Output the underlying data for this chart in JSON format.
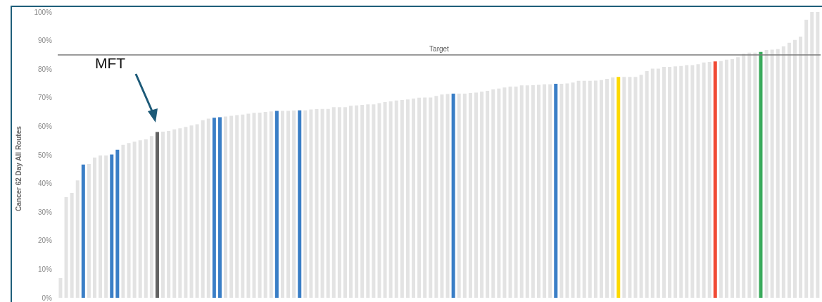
{
  "chart_data": {
    "type": "bar",
    "ylabel": "Cancer 62 Day All Routes",
    "categories": [
      null,
      null,
      null,
      null,
      null,
      null,
      null,
      null,
      null,
      null,
      null,
      null,
      null,
      null,
      null,
      null,
      null,
      null,
      null,
      null,
      null,
      null,
      null,
      null,
      null,
      null,
      null,
      null,
      null,
      null,
      null,
      null,
      null,
      null,
      null,
      null,
      null,
      null,
      null,
      null,
      null,
      null,
      null,
      null,
      null,
      null,
      null,
      null,
      null,
      null,
      null,
      null,
      null,
      null,
      null,
      null,
      null,
      null,
      null,
      null,
      null,
      null,
      null,
      null,
      null,
      null,
      null,
      null,
      null,
      null,
      null,
      null,
      null,
      null,
      null,
      null,
      null,
      null,
      null,
      null,
      null,
      null,
      null,
      null,
      null,
      null,
      null,
      null,
      null,
      null,
      null,
      null,
      null,
      null,
      null,
      null,
      null,
      null,
      null,
      null,
      null,
      null,
      null,
      null,
      null,
      null,
      null,
      null,
      null,
      null,
      null,
      null,
      null,
      null,
      null,
      null,
      null,
      null,
      null,
      null,
      null,
      null,
      null,
      null,
      null,
      null,
      null,
      null,
      null,
      null,
      null,
      null,
      null,
      null
    ],
    "values": [
      6.9,
      35.2,
      36.7,
      41.1,
      46.6,
      46.8,
      49.1,
      49.8,
      49.8,
      50.1,
      51.8,
      53.5,
      54.1,
      54.6,
      55.1,
      55.4,
      56.6,
      58.0,
      58.1,
      58.4,
      58.9,
      59.3,
      59.8,
      60.3,
      60.7,
      62.1,
      62.7,
      63.0,
      63.2,
      63.4,
      63.7,
      63.9,
      64.1,
      64.4,
      64.7,
      64.8,
      65.0,
      65.2,
      65.4,
      65.4,
      65.4,
      65.5,
      65.6,
      65.6,
      65.9,
      66.0,
      66.1,
      66.1,
      66.7,
      66.7,
      66.7,
      67.2,
      67.3,
      67.5,
      67.7,
      67.7,
      68.1,
      68.5,
      68.7,
      69.0,
      69.2,
      69.4,
      69.7,
      70.0,
      70.1,
      70.1,
      70.6,
      71.1,
      71.3,
      71.4,
      71.4,
      71.4,
      71.7,
      71.8,
      72.1,
      72.4,
      72.9,
      73.2,
      73.6,
      73.9,
      73.9,
      74.3,
      74.3,
      74.4,
      74.5,
      74.7,
      74.7,
      74.9,
      74.9,
      75.0,
      75.3,
      75.9,
      75.9,
      75.9,
      76.0,
      76.2,
      76.6,
      77.1,
      77.3,
      77.3,
      77.3,
      77.3,
      78.0,
      79.3,
      80.2,
      80.2,
      80.8,
      80.8,
      81.0,
      81.1,
      81.4,
      81.4,
      81.7,
      82.3,
      82.5,
      82.7,
      82.8,
      83.3,
      83.5,
      84.2,
      85.4,
      85.8,
      85.8,
      86.0,
      86.7,
      86.8,
      87.0,
      88.0,
      89.2,
      90.2,
      91.4,
      97.3,
      100,
      100
    ],
    "colors": [
      "#e3e3e3",
      "#e3e3e3",
      "#e3e3e3",
      "#e3e3e3",
      "#3a7ec6",
      "#e3e3e3",
      "#e3e3e3",
      "#e3e3e3",
      "#e3e3e3",
      "#3a7ec6",
      "#3a7ec6",
      "#e3e3e3",
      "#e3e3e3",
      "#e3e3e3",
      "#e3e3e3",
      "#e3e3e3",
      "#e3e3e3",
      "#636363",
      "#e3e3e3",
      "#e3e3e3",
      "#e3e3e3",
      "#e3e3e3",
      "#e3e3e3",
      "#e3e3e3",
      "#e3e3e3",
      "#e3e3e3",
      "#e3e3e3",
      "#3a7ec6",
      "#3a7ec6",
      "#e3e3e3",
      "#e3e3e3",
      "#e3e3e3",
      "#e3e3e3",
      "#e3e3e3",
      "#e3e3e3",
      "#e3e3e3",
      "#e3e3e3",
      "#e3e3e3",
      "#3a7ec6",
      "#e3e3e3",
      "#e3e3e3",
      "#e3e3e3",
      "#3a7ec6",
      "#e3e3e3",
      "#e3e3e3",
      "#e3e3e3",
      "#e3e3e3",
      "#e3e3e3",
      "#e3e3e3",
      "#e3e3e3",
      "#e3e3e3",
      "#e3e3e3",
      "#e3e3e3",
      "#e3e3e3",
      "#e3e3e3",
      "#e3e3e3",
      "#e3e3e3",
      "#e3e3e3",
      "#e3e3e3",
      "#e3e3e3",
      "#e3e3e3",
      "#e3e3e3",
      "#e3e3e3",
      "#e3e3e3",
      "#e3e3e3",
      "#e3e3e3",
      "#e3e3e3",
      "#e3e3e3",
      "#e3e3e3",
      "#3a7ec6",
      "#e3e3e3",
      "#e3e3e3",
      "#e3e3e3",
      "#e3e3e3",
      "#e3e3e3",
      "#e3e3e3",
      "#e3e3e3",
      "#e3e3e3",
      "#e3e3e3",
      "#e3e3e3",
      "#e3e3e3",
      "#e3e3e3",
      "#e3e3e3",
      "#e3e3e3",
      "#e3e3e3",
      "#e3e3e3",
      "#e3e3e3",
      "#3a7ec6",
      "#e3e3e3",
      "#e3e3e3",
      "#e3e3e3",
      "#e3e3e3",
      "#e3e3e3",
      "#e3e3e3",
      "#e3e3e3",
      "#e3e3e3",
      "#e3e3e3",
      "#e3e3e3",
      "#fdd900",
      "#e3e3e3",
      "#e3e3e3",
      "#e3e3e3",
      "#e3e3e3",
      "#e3e3e3",
      "#e3e3e3",
      "#e3e3e3",
      "#e3e3e3",
      "#e3e3e3",
      "#e3e3e3",
      "#e3e3e3",
      "#e3e3e3",
      "#e3e3e3",
      "#e3e3e3",
      "#e3e3e3",
      "#e3e3e3",
      "#f04a35",
      "#e3e3e3",
      "#e3e3e3",
      "#e3e3e3",
      "#e3e3e3",
      "#e3e3e3",
      "#e3e3e3",
      "#e3e3e3",
      "#3aaa5c",
      "#e3e3e3",
      "#e3e3e3",
      "#e3e3e3",
      "#e3e3e3",
      "#e3e3e3",
      "#e3e3e3",
      "#e3e3e3",
      "#e3e3e3",
      "#e3e3e3",
      "#e3e3e3"
    ],
    "ylim": [
      0,
      100
    ],
    "yticks": [
      {
        "value": 0,
        "label": "0%"
      },
      {
        "value": 10,
        "label": "10%"
      },
      {
        "value": 20,
        "label": "20%"
      },
      {
        "value": 30,
        "label": "30%"
      },
      {
        "value": 40,
        "label": "40%"
      },
      {
        "value": 50,
        "label": "50%"
      },
      {
        "value": 60,
        "label": "60%"
      },
      {
        "value": 70,
        "label": "70%"
      },
      {
        "value": 80,
        "label": "80%"
      },
      {
        "value": 90,
        "label": "90%"
      },
      {
        "value": 100,
        "label": "100%"
      }
    ],
    "ref_lines": [
      {
        "axis": "y",
        "value": 85,
        "label": "Target",
        "color": "#7a7a7a"
      }
    ],
    "annotations": [
      "MFT"
    ]
  }
}
